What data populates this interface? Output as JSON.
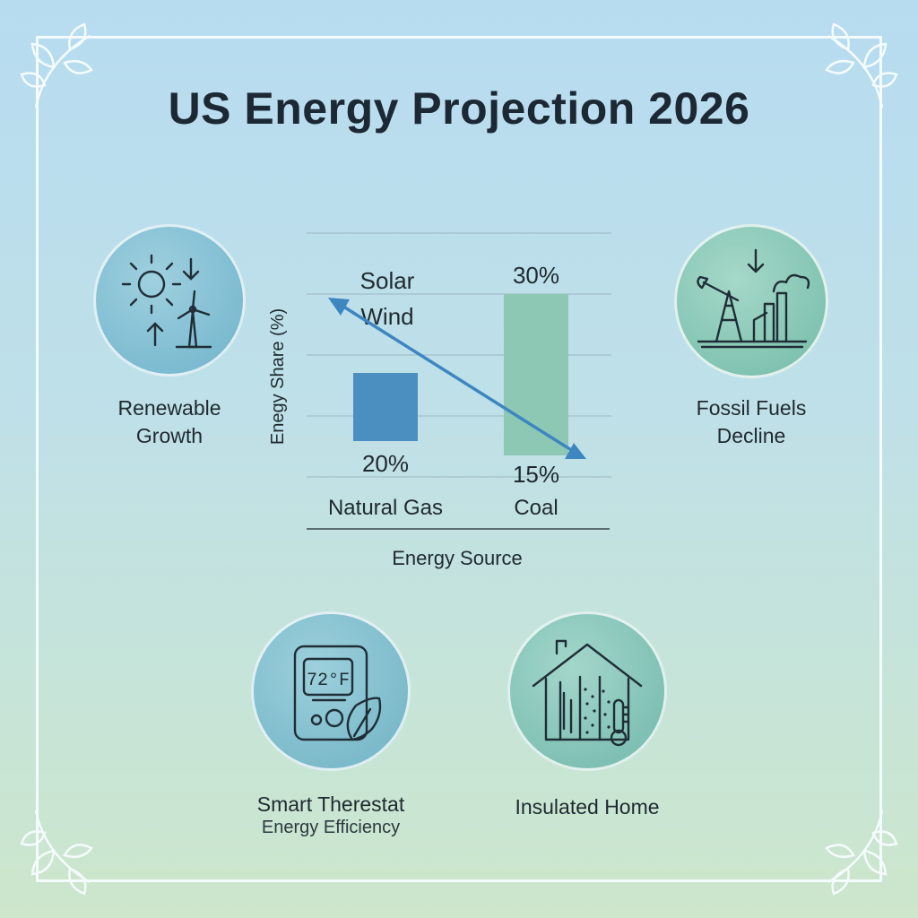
{
  "title": "US Energy Projection 2026",
  "icons": {
    "renewable": {
      "label_line1": "Renewable",
      "label_line2": "Growth",
      "icon": "sun-wind-icon"
    },
    "fossil": {
      "label_line1": "Fossil Fuels",
      "label_line2": "Decline",
      "icon": "oil-factory-icon"
    },
    "thermostat": {
      "label": "Smart Therestat",
      "sublabel": "Energy Efficiency",
      "display": "72°F",
      "icon": "thermostat-icon"
    },
    "home": {
      "label": "Insulated Home",
      "icon": "house-insulation-icon"
    }
  },
  "colors": {
    "bar_blue": "#4a8fbf",
    "bar_green": "#8cc8b4",
    "arrow": "#3d86c0",
    "circle_left": "#7fbfd3",
    "circle_right": "#8ac9bc"
  },
  "chart_data": {
    "type": "bar",
    "categories": [
      "Natural Gas",
      "Coal"
    ],
    "values": [
      20,
      30
    ],
    "bottom_labels": [
      "20%",
      "15%"
    ],
    "top_labels": [
      "",
      "30%"
    ],
    "annotations": [
      "Solar",
      "Wind"
    ],
    "xlabel": "Energy Source",
    "ylabel": "Enegy Share (%)",
    "ylim": [
      0,
      40
    ],
    "grid": true,
    "legend": "none"
  }
}
